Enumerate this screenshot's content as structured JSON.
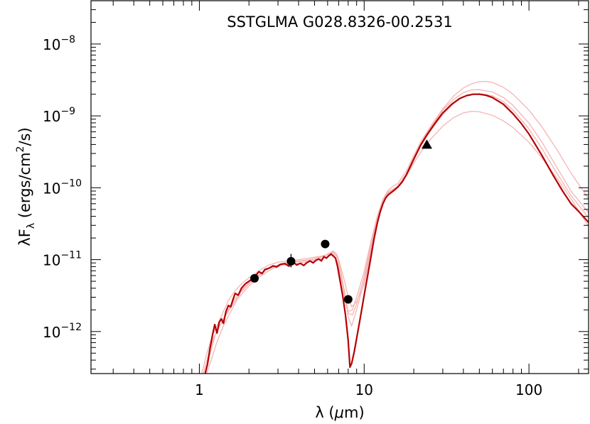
{
  "chart_data": {
    "type": "line",
    "title": "SSTGLMA G028.8326-00.2531",
    "xlabel": {
      "main": "λ (",
      "mu": "μ",
      "unit": "m)"
    },
    "ylabel": {
      "lambda": "λF",
      "sub": "λ",
      "units_a": " (ergs/cm",
      "sup": "2",
      "units_b": "/s)"
    },
    "xscale": "log",
    "yscale": "log",
    "xlim": [
      0.22,
      230
    ],
    "ylim": [
      2.6e-13,
      4e-08
    ],
    "x_ticks": [
      {
        "value": 1,
        "label": "1"
      },
      {
        "value": 10,
        "label": "10"
      },
      {
        "value": 100,
        "label": "100"
      }
    ],
    "y_ticks": [
      {
        "value": 1e-12,
        "base": "10",
        "exp": "−12"
      },
      {
        "value": 1e-11,
        "base": "10",
        "exp": "−11"
      },
      {
        "value": 1e-10,
        "base": "10",
        "exp": "−10"
      },
      {
        "value": 1e-09,
        "base": "10",
        "exp": "−9"
      },
      {
        "value": 1e-08,
        "base": "10",
        "exp": "−8"
      }
    ],
    "colors": {
      "best_fit": "#b50000",
      "other_fits": "#f5b4b4",
      "points": "#000000"
    },
    "best_fit": {
      "name": "best-fit model",
      "points": [
        [
          1.08,
          2.5e-13
        ],
        [
          1.12,
          3.5e-13
        ],
        [
          1.16,
          5.8e-13
        ],
        [
          1.2,
          8.8e-13
        ],
        [
          1.24,
          1.25e-12
        ],
        [
          1.28,
          9.5e-13
        ],
        [
          1.32,
          1.35e-12
        ],
        [
          1.36,
          1.5e-12
        ],
        [
          1.4,
          1.3e-12
        ],
        [
          1.45,
          1.9e-12
        ],
        [
          1.5,
          2.3e-12
        ],
        [
          1.55,
          2.2e-12
        ],
        [
          1.6,
          2.8e-12
        ],
        [
          1.65,
          3.4e-12
        ],
        [
          1.72,
          3.2e-12
        ],
        [
          1.8,
          4e-12
        ],
        [
          1.9,
          4.6e-12
        ],
        [
          2.0,
          5e-12
        ],
        [
          2.1,
          5.4e-12
        ],
        [
          2.2,
          6e-12
        ],
        [
          2.3,
          6.8e-12
        ],
        [
          2.4,
          6.4e-12
        ],
        [
          2.5,
          7.3e-12
        ],
        [
          2.65,
          7.6e-12
        ],
        [
          2.8,
          8.2e-12
        ],
        [
          2.95,
          7.9e-12
        ],
        [
          3.1,
          8.6e-12
        ],
        [
          3.3,
          8.8e-12
        ],
        [
          3.5,
          8.1e-12
        ],
        [
          3.7,
          9.3e-12
        ],
        [
          3.9,
          8.4e-12
        ],
        [
          4.1,
          8.9e-12
        ],
        [
          4.3,
          8.3e-12
        ],
        [
          4.5,
          9.1e-12
        ],
        [
          4.7,
          9.6e-12
        ],
        [
          4.9,
          9e-12
        ],
        [
          5.1,
          9.8e-12
        ],
        [
          5.3,
          1.02e-11
        ],
        [
          5.5,
          9.6e-12
        ],
        [
          5.7,
          1.1e-11
        ],
        [
          5.9,
          1.05e-11
        ],
        [
          6.1,
          1.13e-11
        ],
        [
          6.3,
          1.2e-11
        ],
        [
          6.5,
          1.12e-11
        ],
        [
          6.7,
          1.05e-11
        ],
        [
          6.9,
          8e-12
        ],
        [
          7.1,
          5.5e-12
        ],
        [
          7.4,
          3.2e-12
        ],
        [
          7.7,
          1.7e-12
        ],
        [
          8.0,
          7.5e-13
        ],
        [
          8.2,
          3.2e-13
        ],
        [
          8.4,
          3.6e-13
        ],
        [
          8.7,
          5.2e-13
        ],
        [
          9.0,
          8e-13
        ],
        [
          9.5,
          1.6e-12
        ],
        [
          10.0,
          3.2e-12
        ],
        [
          10.5,
          6e-12
        ],
        [
          11.0,
          1.1e-11
        ],
        [
          11.5,
          2e-11
        ],
        [
          12.0,
          3.2e-11
        ],
        [
          12.5,
          4.6e-11
        ],
        [
          13.0,
          6e-11
        ],
        [
          13.5,
          7.2e-11
        ],
        [
          14.0,
          8e-11
        ],
        [
          15.0,
          9e-11
        ],
        [
          16.0,
          1.02e-10
        ],
        [
          17.0,
          1.2e-10
        ],
        [
          18.0,
          1.5e-10
        ],
        [
          20.0,
          2.5e-10
        ],
        [
          22.0,
          3.9e-10
        ],
        [
          24.0,
          5.4e-10
        ],
        [
          27.0,
          8e-10
        ],
        [
          30.0,
          1.1e-09
        ],
        [
          34.0,
          1.45e-09
        ],
        [
          38.0,
          1.75e-09
        ],
        [
          42.0,
          1.92e-09
        ],
        [
          46.0,
          2e-09
        ],
        [
          50.0,
          2e-09
        ],
        [
          55.0,
          1.93e-09
        ],
        [
          60.0,
          1.8e-09
        ],
        [
          70.0,
          1.45e-09
        ],
        [
          80.0,
          1.07e-09
        ],
        [
          90.0,
          7.8e-10
        ],
        [
          100.0,
          5.6e-10
        ],
        [
          120.0,
          2.8e-10
        ],
        [
          140.0,
          1.5e-10
        ],
        [
          160.0,
          9e-11
        ],
        [
          180.0,
          6e-11
        ],
        [
          200.0,
          4.7e-11
        ],
        [
          230.0,
          3.3e-11
        ]
      ]
    },
    "other_fits": [
      {
        "points": [
          [
            1.03,
            2.5e-13
          ],
          [
            1.1,
            4.6e-13
          ],
          [
            1.2,
            8.8e-13
          ],
          [
            1.3,
            1.3e-12
          ],
          [
            1.4,
            1.9e-12
          ],
          [
            1.5,
            2.7e-12
          ],
          [
            1.65,
            3.7e-12
          ],
          [
            1.8,
            4.6e-12
          ],
          [
            2.0,
            5.6e-12
          ],
          [
            2.3,
            7e-12
          ],
          [
            2.6,
            8.3e-12
          ],
          [
            3.0,
            9.2e-12
          ],
          [
            3.5,
            9.6e-12
          ],
          [
            4.0,
            1e-11
          ],
          [
            4.5,
            1.04e-11
          ],
          [
            5.0,
            1.08e-11
          ],
          [
            5.5,
            1.12e-11
          ],
          [
            6.0,
            1.18e-11
          ],
          [
            6.5,
            1.25e-11
          ],
          [
            6.9,
            1.12e-11
          ],
          [
            7.2,
            8e-12
          ],
          [
            7.6,
            5e-12
          ],
          [
            8.0,
            3e-12
          ],
          [
            8.4,
            2.2e-12
          ],
          [
            9.0,
            2.6e-12
          ],
          [
            10.0,
            4.5e-12
          ],
          [
            11.0,
            1.3e-11
          ],
          [
            12.0,
            3.4e-11
          ],
          [
            13.0,
            6.3e-11
          ],
          [
            14.0,
            8.5e-11
          ],
          [
            15.0,
            9.4e-11
          ],
          [
            16.0,
            1.06e-10
          ],
          [
            18.0,
            1.55e-10
          ],
          [
            20.0,
            2.6e-10
          ],
          [
            22.0,
            4.1e-10
          ],
          [
            25.0,
            6.5e-10
          ],
          [
            30.0,
            1.2e-09
          ],
          [
            35.0,
            1.7e-09
          ],
          [
            40.0,
            2.1e-09
          ],
          [
            45.0,
            2.3e-09
          ],
          [
            50.0,
            2.32e-09
          ],
          [
            60.0,
            2.15e-09
          ],
          [
            70.0,
            1.8e-09
          ],
          [
            80.0,
            1.4e-09
          ],
          [
            100.0,
            7.9e-10
          ],
          [
            120.0,
            4.3e-10
          ],
          [
            150.0,
            1.8e-10
          ],
          [
            180.0,
            9e-11
          ],
          [
            230.0,
            4.5e-11
          ]
        ]
      },
      {
        "points": [
          [
            1.05,
            2.5e-13
          ],
          [
            1.12,
            4.2e-13
          ],
          [
            1.22,
            8.2e-13
          ],
          [
            1.32,
            1.15e-12
          ],
          [
            1.45,
            1.7e-12
          ],
          [
            1.6,
            2.4e-12
          ],
          [
            1.8,
            3.6e-12
          ],
          [
            2.0,
            4.6e-12
          ],
          [
            2.3,
            6e-12
          ],
          [
            2.6,
            7.4e-12
          ],
          [
            3.0,
            8.4e-12
          ],
          [
            3.5,
            8.9e-12
          ],
          [
            4.0,
            9.4e-12
          ],
          [
            4.5,
            9.7e-12
          ],
          [
            5.0,
            1.02e-11
          ],
          [
            5.5,
            1.08e-11
          ],
          [
            6.0,
            1.2e-11
          ],
          [
            6.5,
            1.32e-11
          ],
          [
            6.8,
            1.2e-11
          ],
          [
            7.2,
            6.8e-12
          ],
          [
            7.6,
            3.4e-12
          ],
          [
            8.0,
            1.9e-12
          ],
          [
            8.5,
            2e-12
          ],
          [
            9.0,
            3e-12
          ],
          [
            10.0,
            6.8e-12
          ],
          [
            11.0,
            1.8e-11
          ],
          [
            12.0,
            4e-11
          ],
          [
            13.0,
            6.9e-11
          ],
          [
            14.0,
            9.3e-11
          ],
          [
            15.0,
            1.05e-10
          ],
          [
            16.0,
            1.15e-10
          ],
          [
            18.0,
            1.7e-10
          ],
          [
            20.0,
            2.8e-10
          ],
          [
            22.0,
            4.3e-10
          ],
          [
            25.0,
            6.9e-10
          ],
          [
            30.0,
            1.25e-09
          ],
          [
            35.0,
            1.9e-09
          ],
          [
            40.0,
            2.45e-09
          ],
          [
            45.0,
            2.8e-09
          ],
          [
            50.0,
            3e-09
          ],
          [
            55.0,
            3.02e-09
          ],
          [
            60.0,
            2.92e-09
          ],
          [
            70.0,
            2.5e-09
          ],
          [
            80.0,
            2e-09
          ],
          [
            100.0,
            1.2e-09
          ],
          [
            120.0,
            7e-10
          ],
          [
            150.0,
            3.2e-10
          ],
          [
            180.0,
            1.6e-10
          ],
          [
            230.0,
            7e-11
          ]
        ]
      },
      {
        "points": [
          [
            1.1,
            2.5e-13
          ],
          [
            1.18,
            4e-13
          ],
          [
            1.28,
            7.2e-13
          ],
          [
            1.4,
            1.2e-12
          ],
          [
            1.55,
            1.9e-12
          ],
          [
            1.7,
            2.8e-12
          ],
          [
            1.9,
            3.8e-12
          ],
          [
            2.1,
            4.8e-12
          ],
          [
            2.4,
            6.1e-12
          ],
          [
            2.8,
            7.6e-12
          ],
          [
            3.2,
            8.4e-12
          ],
          [
            3.6,
            8.6e-12
          ],
          [
            4.0,
            8.9e-12
          ],
          [
            4.5,
            9.3e-12
          ],
          [
            5.0,
            9.8e-12
          ],
          [
            5.5,
            1.03e-11
          ],
          [
            6.0,
            1.1e-11
          ],
          [
            6.5,
            1.18e-11
          ],
          [
            6.9,
            9e-12
          ],
          [
            7.3,
            5e-12
          ],
          [
            7.7,
            2.6e-12
          ],
          [
            8.0,
            1.8e-12
          ],
          [
            8.5,
            1.7e-12
          ],
          [
            9.0,
            2.4e-12
          ],
          [
            10.0,
            5.8e-12
          ],
          [
            11.0,
            1.6e-11
          ],
          [
            12.0,
            3.7e-11
          ],
          [
            13.0,
            6.6e-11
          ],
          [
            14.0,
            8.8e-11
          ],
          [
            15.0,
            9.6e-11
          ],
          [
            16.0,
            1.05e-10
          ],
          [
            18.0,
            1.45e-10
          ],
          [
            20.0,
            2.2e-10
          ],
          [
            22.0,
            3.1e-10
          ],
          [
            25.0,
            4.6e-10
          ],
          [
            30.0,
            7.2e-10
          ],
          [
            35.0,
            9.5e-10
          ],
          [
            40.0,
            1.1e-09
          ],
          [
            45.0,
            1.16e-09
          ],
          [
            50.0,
            1.14e-09
          ],
          [
            60.0,
            1.02e-09
          ],
          [
            70.0,
            8.5e-10
          ],
          [
            80.0,
            6.9e-10
          ],
          [
            100.0,
            4.3e-10
          ],
          [
            120.0,
            2.6e-10
          ],
          [
            150.0,
            1.3e-10
          ],
          [
            180.0,
            7e-11
          ],
          [
            230.0,
            2.9e-11
          ]
        ]
      },
      {
        "points": [
          [
            1.08,
            2.5e-13
          ],
          [
            1.15,
            4.5e-13
          ],
          [
            1.25,
            9e-13
          ],
          [
            1.35,
            1.3e-12
          ],
          [
            1.5,
            2e-12
          ],
          [
            1.65,
            2.9e-12
          ],
          [
            1.85,
            4e-12
          ],
          [
            2.05,
            5e-12
          ],
          [
            2.35,
            6.4e-12
          ],
          [
            2.7,
            7.8e-12
          ],
          [
            3.1,
            8.7e-12
          ],
          [
            3.5,
            9.2e-12
          ],
          [
            4.0,
            9.6e-12
          ],
          [
            4.5,
            9.9e-12
          ],
          [
            5.0,
            1.03e-11
          ],
          [
            5.5,
            1.1e-11
          ],
          [
            6.0,
            1.17e-11
          ],
          [
            6.5,
            1.28e-11
          ],
          [
            6.9,
            1.05e-11
          ],
          [
            7.3,
            6e-12
          ],
          [
            7.7,
            3e-12
          ],
          [
            8.0,
            1.6e-12
          ],
          [
            8.4,
            1.2e-12
          ],
          [
            9.0,
            2e-12
          ],
          [
            10.0,
            5e-12
          ],
          [
            11.0,
            1.45e-11
          ],
          [
            12.0,
            3.5e-11
          ],
          [
            13.0,
            6.2e-11
          ],
          [
            14.0,
            8.4e-11
          ],
          [
            15.0,
            9.3e-11
          ],
          [
            16.0,
            1.03e-10
          ],
          [
            18.0,
            1.5e-10
          ],
          [
            20.0,
            2.5e-10
          ],
          [
            22.0,
            3.8e-10
          ],
          [
            25.0,
            6e-10
          ],
          [
            30.0,
            1.05e-09
          ],
          [
            35.0,
            1.5e-09
          ],
          [
            40.0,
            1.85e-09
          ],
          [
            45.0,
            2e-09
          ],
          [
            50.0,
            2.05e-09
          ],
          [
            60.0,
            1.9e-09
          ],
          [
            70.0,
            1.58e-09
          ],
          [
            80.0,
            1.2e-09
          ],
          [
            100.0,
            6.6e-10
          ],
          [
            120.0,
            3.5e-10
          ],
          [
            150.0,
            1.5e-10
          ],
          [
            180.0,
            7.8e-11
          ],
          [
            230.0,
            3.8e-11
          ]
        ]
      }
    ],
    "data_points": [
      {
        "x": 2.16,
        "y": 5.5e-12,
        "marker": "circle"
      },
      {
        "x": 3.6,
        "y": 9.5e-12,
        "marker": "circle",
        "yerr": [
          7.8e-12,
          1.2e-11
        ]
      },
      {
        "x": 5.8,
        "y": 1.65e-11,
        "marker": "circle"
      },
      {
        "x": 8.0,
        "y": 2.8e-12,
        "marker": "circle"
      },
      {
        "x": 24.0,
        "y": 4e-10,
        "marker": "triangle"
      }
    ]
  }
}
